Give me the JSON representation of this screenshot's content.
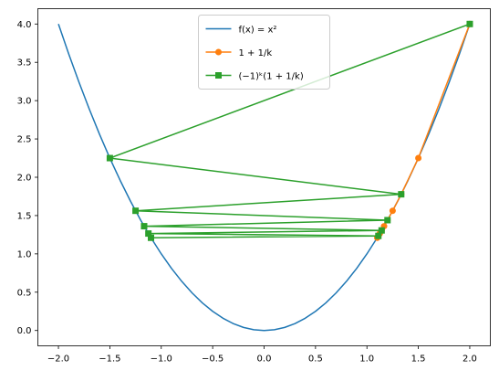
{
  "chart_data": {
    "type": "line",
    "series": [
      {
        "name": "f(x) = x²",
        "color": "#1f77b4",
        "marker": "none",
        "x": [
          -2,
          -1.9,
          -1.8,
          -1.7,
          -1.6,
          -1.5,
          -1.4,
          -1.3,
          -1.2,
          -1.1,
          -1,
          -0.9,
          -0.8,
          -0.7,
          -0.6,
          -0.5,
          -0.4,
          -0.3,
          -0.2,
          -0.1,
          0,
          0.1,
          0.2,
          0.3,
          0.4,
          0.5,
          0.6,
          0.7,
          0.8,
          0.9,
          1,
          1.1,
          1.2,
          1.3,
          1.4,
          1.5,
          1.6,
          1.7,
          1.8,
          1.9,
          2
        ],
        "values": [
          4,
          3.61,
          3.24,
          2.89,
          2.56,
          2.25,
          1.96,
          1.69,
          1.44,
          1.21,
          1,
          0.81,
          0.64,
          0.49,
          0.36,
          0.25,
          0.16,
          0.09,
          0.04,
          0.01,
          0,
          0.01,
          0.04,
          0.09,
          0.16,
          0.25,
          0.36,
          0.49,
          0.64,
          0.81,
          1,
          1.21,
          1.44,
          1.69,
          1.96,
          2.25,
          2.56,
          2.89,
          3.24,
          3.61,
          4
        ]
      },
      {
        "name": "1 + 1/k",
        "color": "#ff7f0e",
        "marker": "circle",
        "x": [
          2,
          1.5,
          1.3333,
          1.25,
          1.2,
          1.1667,
          1.1429,
          1.125,
          1.1111,
          1.1
        ],
        "values": [
          4,
          2.25,
          1.7778,
          1.5625,
          1.44,
          1.3611,
          1.3061,
          1.2656,
          1.2346,
          1.21
        ]
      },
      {
        "name": "(−1)ᵏ(1 + 1/k)",
        "color": "#2ca02c",
        "marker": "square",
        "x": [
          2,
          -1.5,
          1.3333,
          -1.25,
          1.2,
          -1.1667,
          1.1429,
          -1.125,
          1.1111,
          -1.1
        ],
        "values": [
          4,
          2.25,
          1.7778,
          1.5625,
          1.44,
          1.3611,
          1.3061,
          1.2656,
          1.2346,
          1.21
        ]
      }
    ],
    "xlim": [
      -2.2,
      2.2
    ],
    "ylim": [
      -0.2,
      4.2
    ],
    "xticks": [
      {
        "value": -2,
        "label": "−2.0"
      },
      {
        "value": -1.5,
        "label": "−1.5"
      },
      {
        "value": -1,
        "label": "−1.0"
      },
      {
        "value": -0.5,
        "label": "−0.5"
      },
      {
        "value": 0,
        "label": "0.0"
      },
      {
        "value": 0.5,
        "label": "0.5"
      },
      {
        "value": 1,
        "label": "1.0"
      },
      {
        "value": 1.5,
        "label": "1.5"
      },
      {
        "value": 2,
        "label": "2.0"
      }
    ],
    "yticks": [
      {
        "value": 0,
        "label": "0.0"
      },
      {
        "value": 0.5,
        "label": "0.5"
      },
      {
        "value": 1,
        "label": "1.0"
      },
      {
        "value": 1.5,
        "label": "1.5"
      },
      {
        "value": 2,
        "label": "2.0"
      },
      {
        "value": 2.5,
        "label": "2.5"
      },
      {
        "value": 3,
        "label": "3.0"
      },
      {
        "value": 3.5,
        "label": "3.5"
      },
      {
        "value": 4,
        "label": "4.0"
      }
    ],
    "legend": "upper center",
    "grid": false
  }
}
